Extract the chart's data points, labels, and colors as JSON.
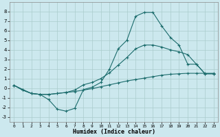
{
  "xlabel": "Humidex (Indice chaleur)",
  "background_color": "#cce8ee",
  "grid_color": "#aacccc",
  "line_color": "#1a6b6b",
  "xlim": [
    -0.5,
    23.5
  ],
  "ylim": [
    -3.5,
    9.0
  ],
  "xticks": [
    0,
    1,
    2,
    3,
    4,
    5,
    6,
    7,
    8,
    9,
    10,
    11,
    12,
    13,
    14,
    15,
    16,
    17,
    18,
    19,
    20,
    21,
    22,
    23
  ],
  "yticks": [
    -3,
    -2,
    -1,
    0,
    1,
    2,
    3,
    4,
    5,
    6,
    7,
    8
  ],
  "line1_x": [
    0,
    1,
    2,
    3,
    4,
    5,
    6,
    7,
    8,
    9,
    10,
    11,
    12,
    13,
    14,
    15,
    16,
    17,
    18,
    19,
    20,
    21,
    22,
    23
  ],
  "line1_y": [
    0.3,
    -0.2,
    -0.55,
    -0.65,
    -0.65,
    -0.55,
    -0.45,
    -0.35,
    -0.2,
    -0.05,
    0.15,
    0.35,
    0.55,
    0.75,
    0.9,
    1.05,
    1.2,
    1.35,
    1.45,
    1.5,
    1.55,
    1.55,
    1.55,
    1.55
  ],
  "line2_x": [
    0,
    2,
    3,
    4,
    5,
    6,
    7,
    8,
    9,
    10,
    11,
    12,
    13,
    14,
    15,
    16,
    17,
    18,
    19,
    20,
    21,
    22,
    23
  ],
  "line2_y": [
    0.3,
    -0.55,
    -0.65,
    -0.65,
    -0.55,
    -0.45,
    -0.2,
    0.35,
    0.6,
    1.0,
    1.6,
    2.4,
    3.2,
    4.1,
    4.5,
    4.5,
    4.3,
    4.0,
    3.8,
    3.5,
    2.5,
    1.5,
    1.5
  ],
  "line3_x": [
    0,
    1,
    2,
    3,
    4,
    5,
    6,
    7,
    8,
    9,
    10,
    11,
    12,
    13,
    14,
    15,
    16,
    17,
    18,
    19,
    20,
    21,
    22,
    23
  ],
  "line3_y": [
    0.3,
    -0.2,
    -0.55,
    -0.65,
    -1.2,
    -2.2,
    -2.4,
    -2.1,
    -0.15,
    0.1,
    0.6,
    2.0,
    4.1,
    5.0,
    7.5,
    7.9,
    7.9,
    6.5,
    5.3,
    4.5,
    2.5,
    2.5,
    1.5,
    1.5
  ]
}
